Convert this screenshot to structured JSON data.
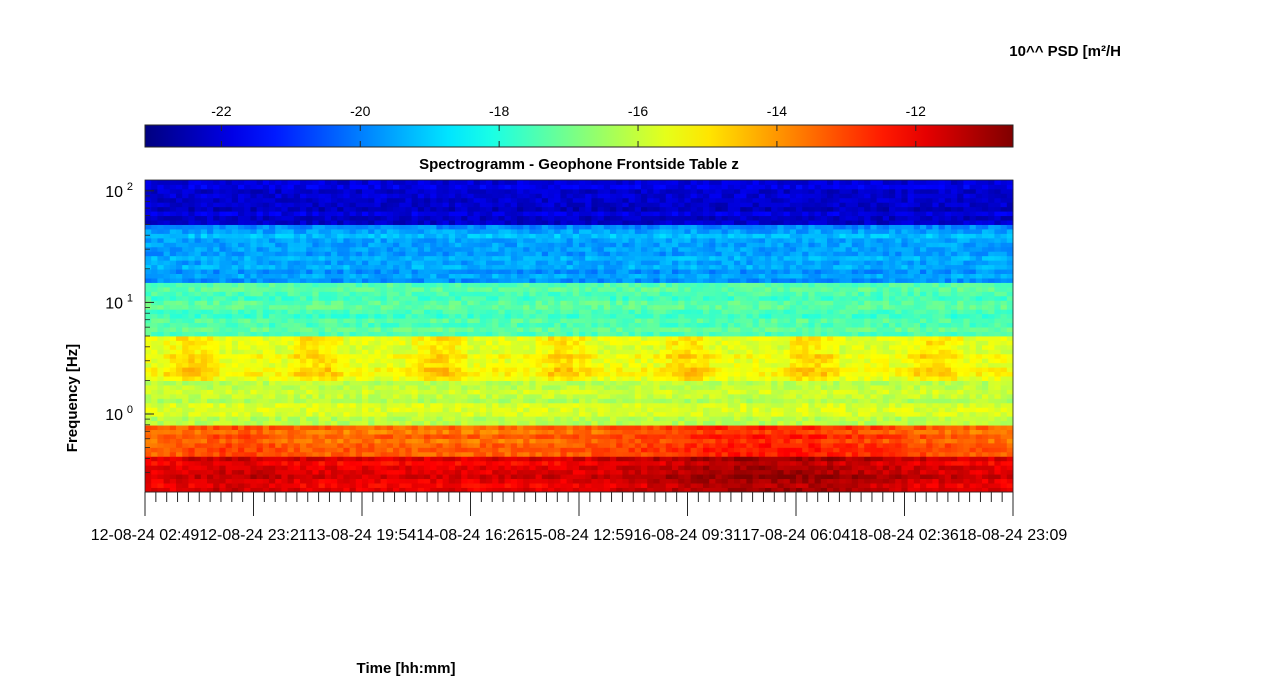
{
  "chart_data": {
    "type": "heatmap",
    "title": "Spectrogramm - Geophone Frontside Table z",
    "xlabel": "Time [hh:mm]",
    "ylabel": "Frequency [Hz]",
    "y_scale": "log",
    "ylim": [
      0.2,
      125
    ],
    "x_tick_labels": [
      "12-08-24 02:49",
      "12-08-24 23:21",
      "13-08-24 19:54",
      "14-08-24 16:26",
      "15-08-24 12:59",
      "16-08-24 09:31",
      "17-08-24 06:04",
      "18-08-24 02:36",
      "18-08-24 23:09"
    ],
    "y_ticks": [
      {
        "base": "10",
        "exp": "0",
        "value": 1
      },
      {
        "base": "10",
        "exp": "1",
        "value": 10
      },
      {
        "base": "10",
        "exp": "2",
        "value": 100
      }
    ],
    "colorbar": {
      "label": "10^^ PSD [m²/H",
      "colormap": "jet",
      "range": [
        -23.1,
        -10.6
      ],
      "ticks": [
        -22,
        -20,
        -18,
        -16,
        -14,
        -12
      ],
      "tick_labels": [
        "-22",
        "-20",
        "-18",
        "-16",
        "-14",
        "-12"
      ],
      "placement": "top"
    },
    "grid": false,
    "description_bands_log10psd": [
      {
        "freq_hz_range": [
          50,
          125
        ],
        "level": -22.0
      },
      {
        "freq_hz_range": [
          15,
          50
        ],
        "level": -19.5
      },
      {
        "freq_hz_range": [
          5,
          15
        ],
        "level": -17.5
      },
      {
        "freq_hz_range": [
          2,
          5
        ],
        "level": -15.5
      },
      {
        "freq_hz_range": [
          0.8,
          2
        ],
        "level": -16.0
      },
      {
        "freq_hz_range": [
          0.4,
          0.8
        ],
        "level": -13.5
      },
      {
        "freq_hz_range": [
          0.2,
          0.4
        ],
        "level": -12.0
      }
    ]
  }
}
